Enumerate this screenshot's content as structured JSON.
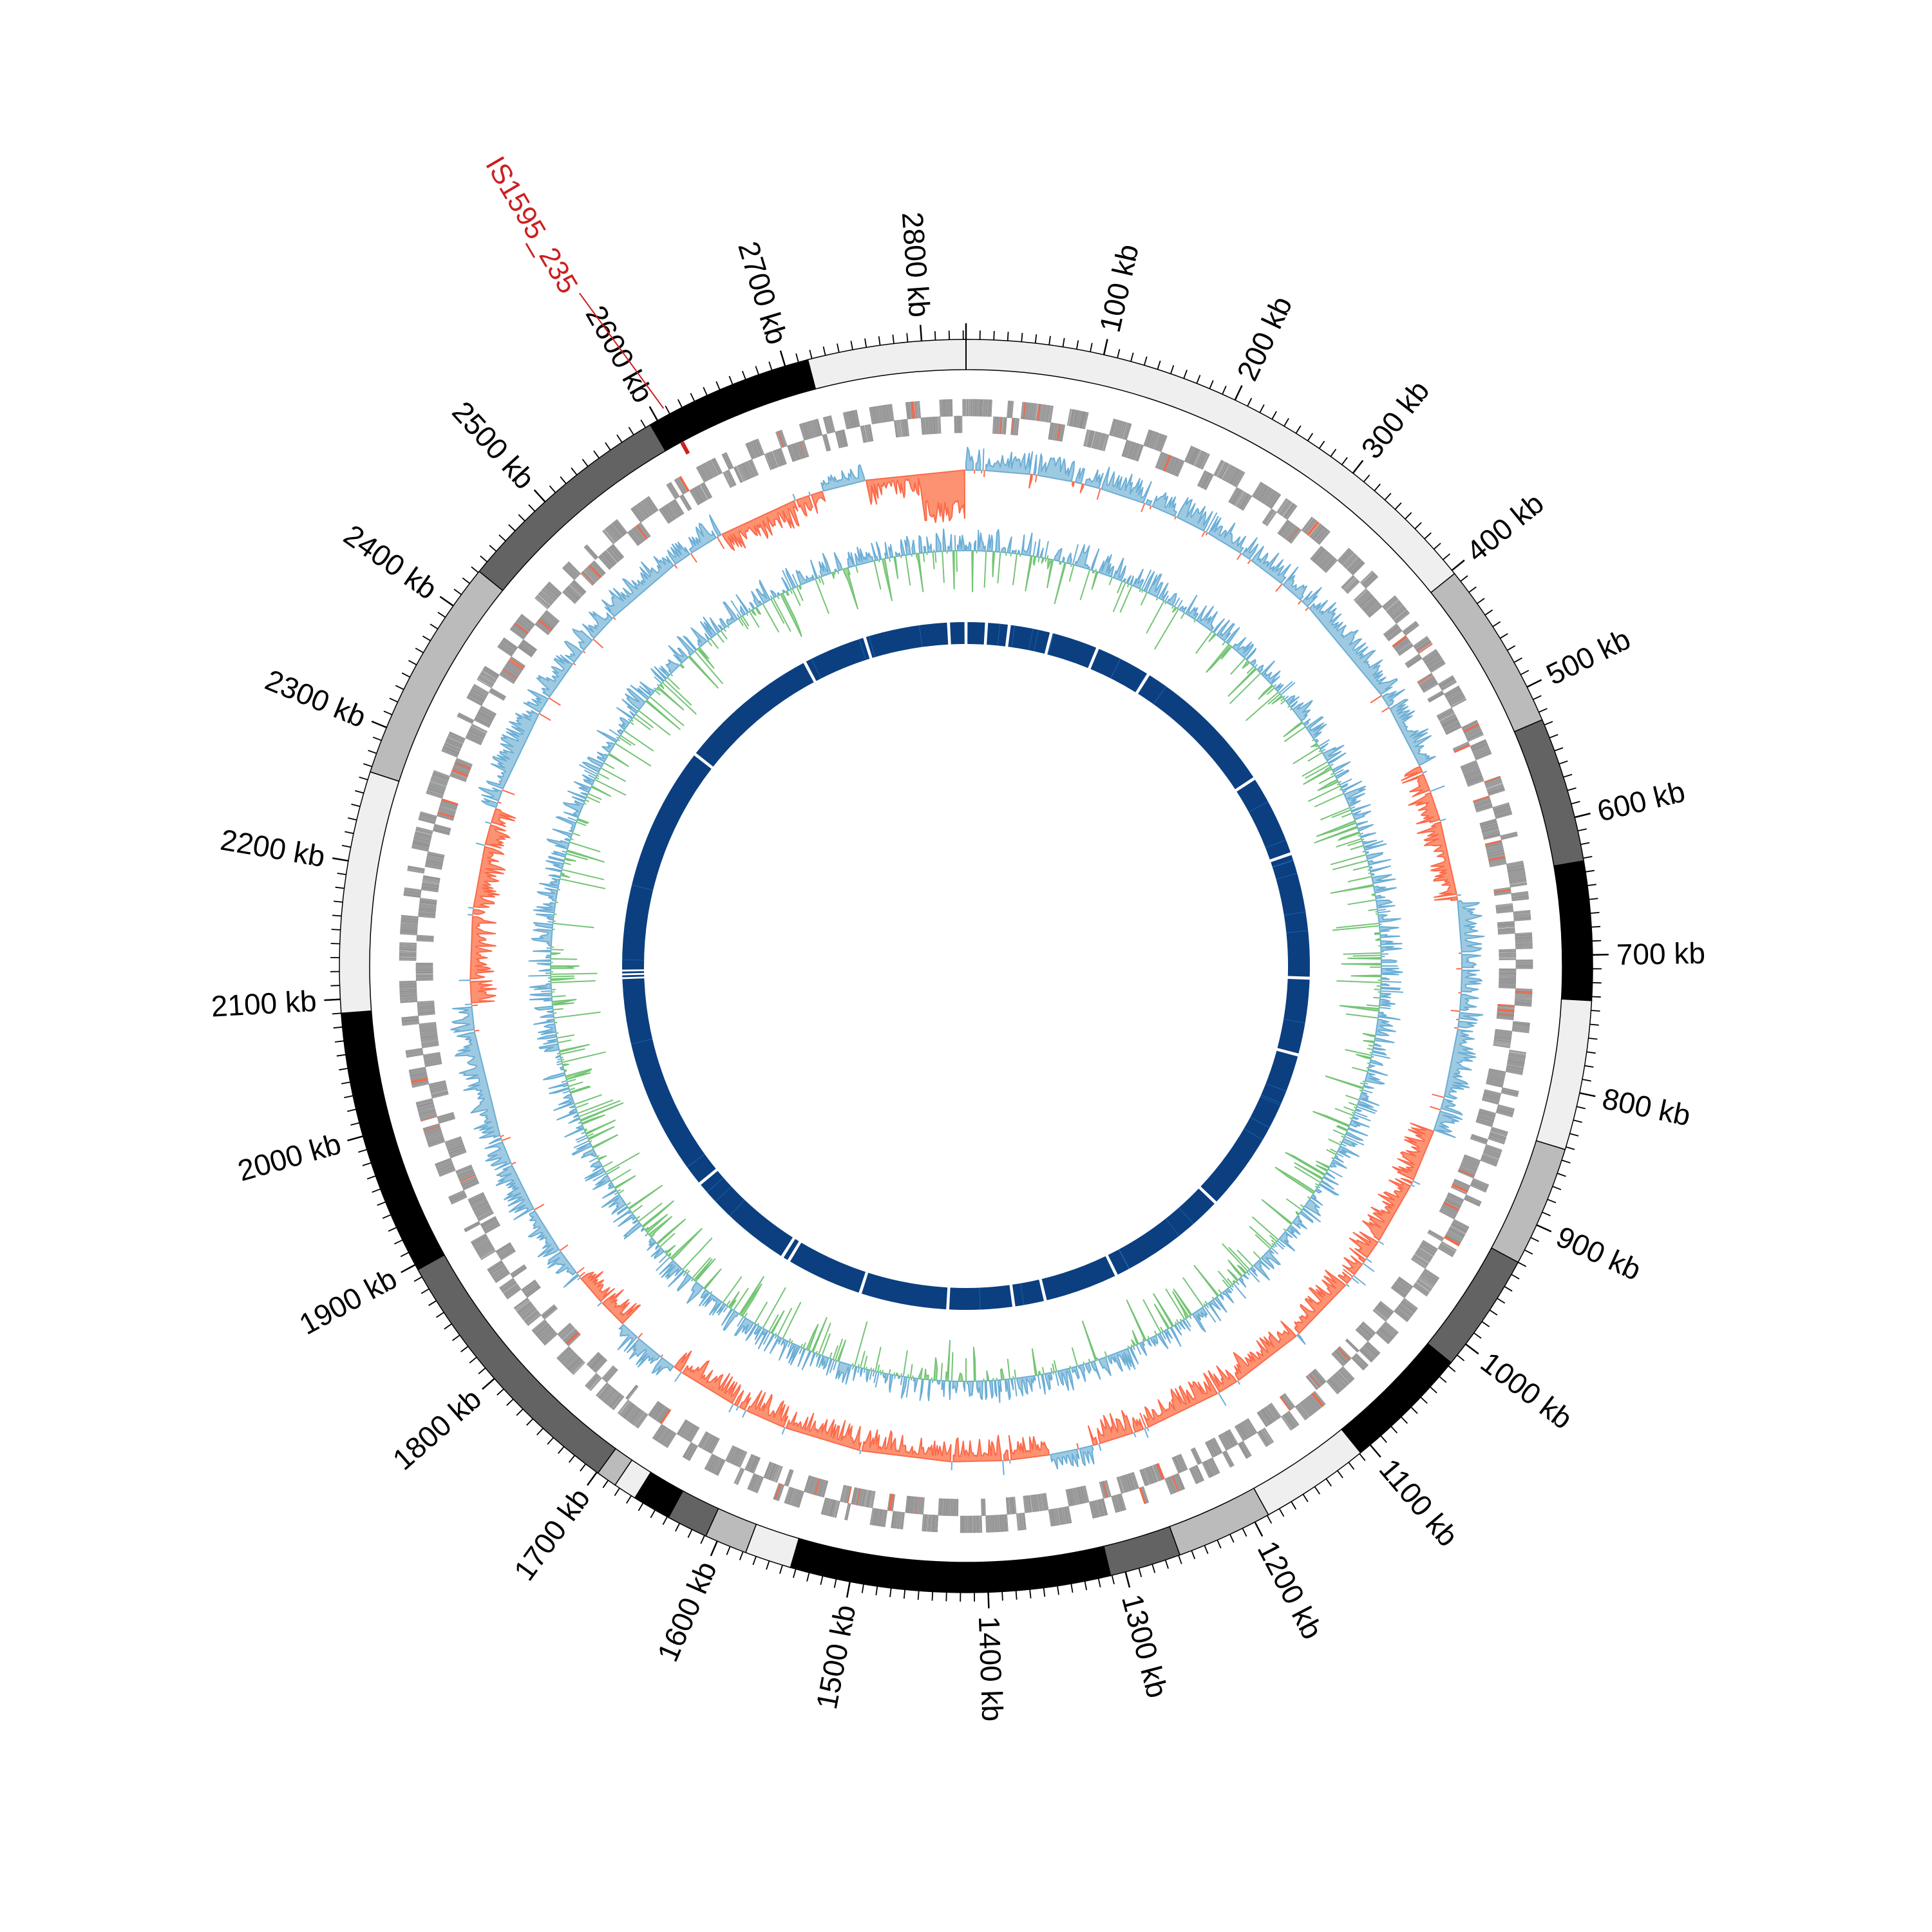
{
  "chart_data": {
    "type": "area",
    "title": "",
    "genome_length_kb": 2832,
    "tick_labels": [
      "100 kb",
      "200 kb",
      "300 kb",
      "400 kb",
      "500 kb",
      "600 kb",
      "700 kb",
      "800 kb",
      "900 kb",
      "1000 kb",
      "1100 kb",
      "1200 kb",
      "1300 kb",
      "1400 kb",
      "1500 kb",
      "1600 kb",
      "1700 kb",
      "1800 kb",
      "1900 kb",
      "2000 kb",
      "2100 kb",
      "2200 kb",
      "2300 kb",
      "2400 kb",
      "2500 kb",
      "2600 kb",
      "2700 kb",
      "2800 kb"
    ],
    "major_tick_interval_kb": 100,
    "minor_tick_interval_kb": 10,
    "bands": [
      {
        "start": 0,
        "end": 403,
        "color": "#efefef"
      },
      {
        "start": 403,
        "end": 526,
        "color": "#bbbbbb"
      },
      {
        "start": 526,
        "end": 632,
        "color": "#636363"
      },
      {
        "start": 632,
        "end": 733,
        "color": "#000000"
      },
      {
        "start": 733,
        "end": 842,
        "color": "#efefef"
      },
      {
        "start": 842,
        "end": 930,
        "color": "#bbbbbb"
      },
      {
        "start": 930,
        "end": 1017,
        "color": "#636363"
      },
      {
        "start": 1017,
        "end": 1109,
        "color": "#000000"
      },
      {
        "start": 1109,
        "end": 1189,
        "color": "#efefef"
      },
      {
        "start": 1189,
        "end": 1259,
        "color": "#bbbbbb"
      },
      {
        "start": 1259,
        "end": 1311,
        "color": "#636363"
      },
      {
        "start": 1311,
        "end": 1544,
        "color": "#000000"
      },
      {
        "start": 1544,
        "end": 1578,
        "color": "#efefef"
      },
      {
        "start": 1578,
        "end": 1609,
        "color": "#bbbbbb"
      },
      {
        "start": 1609,
        "end": 1639,
        "color": "#636363"
      },
      {
        "start": 1639,
        "end": 1667,
        "color": "#000000"
      },
      {
        "start": 1667,
        "end": 1684,
        "color": "#efefef"
      },
      {
        "start": 1684,
        "end": 1699,
        "color": "#bbbbbb"
      },
      {
        "start": 1699,
        "end": 1896,
        "color": "#636363"
      },
      {
        "start": 1896,
        "end": 2090,
        "color": "#000000"
      },
      {
        "start": 2090,
        "end": 2266,
        "color": "#efefef"
      },
      {
        "start": 2266,
        "end": 2431,
        "color": "#bbbbbb"
      },
      {
        "start": 2431,
        "end": 2594,
        "color": "#636363"
      },
      {
        "start": 2594,
        "end": 2717,
        "color": "#000000"
      },
      {
        "start": 2717,
        "end": 2832,
        "color": "#efefef"
      }
    ],
    "annotation": {
      "label": "IS1595_235",
      "position_kb": 2608,
      "color": "#cc1f1f"
    },
    "gc_skew_sign_regions": [
      [
        0,
        520,
        1
      ],
      [
        520,
        650,
        -1
      ],
      [
        650,
        860,
        1
      ],
      [
        860,
        1300,
        -1
      ],
      [
        1300,
        1340,
        1
      ],
      [
        1340,
        1700,
        -1
      ],
      [
        1700,
        1760,
        1
      ],
      [
        1760,
        1820,
        -1
      ],
      [
        1820,
        2090,
        1
      ],
      [
        2090,
        2270,
        -1
      ],
      [
        2270,
        2600,
        1
      ],
      [
        2600,
        2700,
        -1
      ],
      [
        2700,
        2740,
        1
      ],
      [
        2740,
        2832,
        -1
      ]
    ],
    "contig_gaps_kb": [
      27,
      57,
      113,
      177,
      252,
      448,
      558,
      724,
      826,
      1050,
      1212,
      1311,
      1353,
      1440,
      1557,
      1660,
      1670,
      1815,
      2108,
      2113,
      2118,
      2423,
      2612,
      2697,
      2809
    ],
    "colors": {
      "gene": "#a0a0a0",
      "gene_highlight": "#f4694a",
      "skew_pos_fill": "#9ecae1",
      "skew_pos_line": "#6baed6",
      "skew_neg_fill": "#fc9272",
      "skew_neg_line": "#fb6a4a",
      "gc_pos_fill": "#9ecae1",
      "gc_pos_line": "#6baed6",
      "gc_neg_fill": "#a1d99b",
      "gc_neg_line": "#74c476",
      "contig": "#0b3f80"
    }
  }
}
